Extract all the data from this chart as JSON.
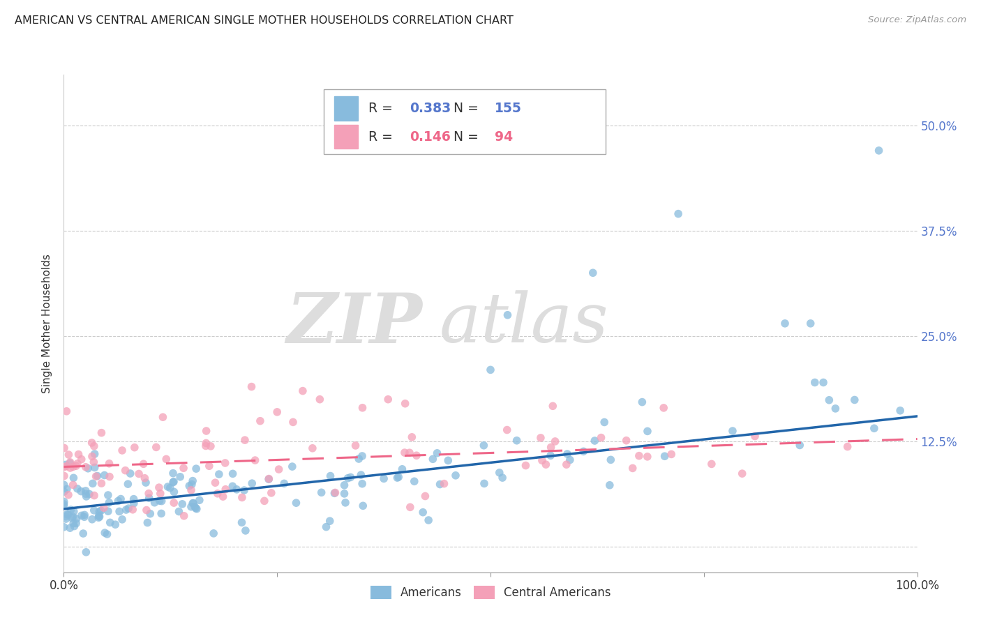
{
  "title": "AMERICAN VS CENTRAL AMERICAN SINGLE MOTHER HOUSEHOLDS CORRELATION CHART",
  "source": "Source: ZipAtlas.com",
  "ylabel": "Single Mother Households",
  "xlim": [
    0.0,
    1.0
  ],
  "ylim": [
    -0.03,
    0.56
  ],
  "yticks": [
    0.0,
    0.125,
    0.25,
    0.375,
    0.5
  ],
  "ytick_labels_right": [
    "",
    "12.5%",
    "25.0%",
    "37.5%",
    "50.0%"
  ],
  "americans_R": "0.383",
  "americans_N": "155",
  "central_americans_R": "0.146",
  "central_americans_N": "94",
  "americans_color": "#88bbdd",
  "central_color": "#f4a0b8",
  "americans_line_color": "#2266aa",
  "central_line_color": "#ee6688",
  "legend_americans": "Americans",
  "legend_central": "Central Americans",
  "watermark_zip": "ZIP",
  "watermark_atlas": "atlas",
  "background_color": "#ffffff",
  "grid_color": "#cccccc",
  "title_color": "#222222",
  "right_axis_color": "#5577cc",
  "americans_line_start_y": 0.045,
  "americans_line_end_y": 0.155,
  "central_line_start_y": 0.095,
  "central_line_end_y": 0.128
}
